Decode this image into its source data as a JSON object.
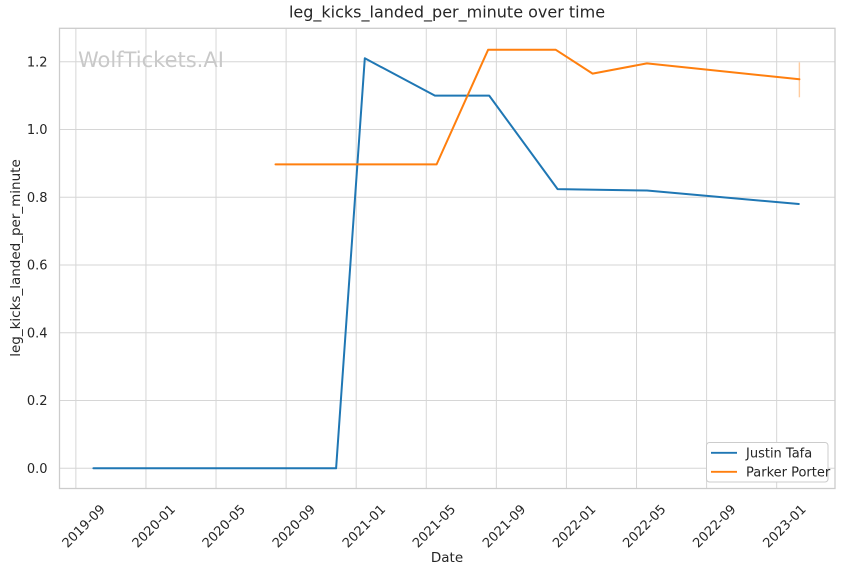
{
  "chart_data": {
    "type": "line",
    "title": "leg_kicks_landed_per_minute over time",
    "xlabel": "Date",
    "ylabel": "leg_kicks_landed_per_minute",
    "watermark": "WolfTickets.AI",
    "background_color": "#ffffff",
    "grid": true,
    "grid_color": "#d6d6d6",
    "spine_color": "#cccccc",
    "text_color": "#262626",
    "watermark_color": "#c9c9c9",
    "xtick_labels": [
      "2019-09",
      "2020-01",
      "2020-05",
      "2020-09",
      "2021-01",
      "2021-05",
      "2021-09",
      "2022-01",
      "2022-05",
      "2022-09",
      "2023-01"
    ],
    "ytick_values": [
      0.0,
      0.2,
      0.4,
      0.6,
      0.8,
      1.0,
      1.2
    ],
    "xlim_dates": [
      "2019-08-03",
      "2023-04-11"
    ],
    "ylim": [
      -0.0596,
      1.2986
    ],
    "legend": {
      "position": "lower right",
      "entries": [
        "Justin Tafa",
        "Parker Porter"
      ]
    },
    "series": [
      {
        "name": "Justin Tafa",
        "color": "#1f77b4",
        "points": [
          {
            "date": "2019-10-01",
            "value": 0.0
          },
          {
            "date": "2020-11-27",
            "value": 0.0
          },
          {
            "date": "2021-01-16",
            "value": 1.21
          },
          {
            "date": "2021-05-16",
            "value": 1.1
          },
          {
            "date": "2021-08-19",
            "value": 1.1
          },
          {
            "date": "2021-12-16",
            "value": 0.824
          },
          {
            "date": "2022-05-19",
            "value": 0.82
          },
          {
            "date": "2023-02-09",
            "value": 0.78
          }
        ]
      },
      {
        "name": "Parker Porter",
        "color": "#ff7f0e",
        "points": [
          {
            "date": "2020-08-13",
            "value": 0.897
          },
          {
            "date": "2021-05-19",
            "value": 0.897
          },
          {
            "date": "2021-08-17",
            "value": 1.235
          },
          {
            "date": "2021-12-13",
            "value": 1.235
          },
          {
            "date": "2022-02-16",
            "value": 1.165
          },
          {
            "date": "2022-05-19",
            "value": 1.195
          },
          {
            "date": "2023-02-10",
            "value": 1.148
          }
        ],
        "error_bar": {
          "date": "2023-02-10",
          "low": 1.095,
          "high": 1.198
        }
      }
    ]
  }
}
